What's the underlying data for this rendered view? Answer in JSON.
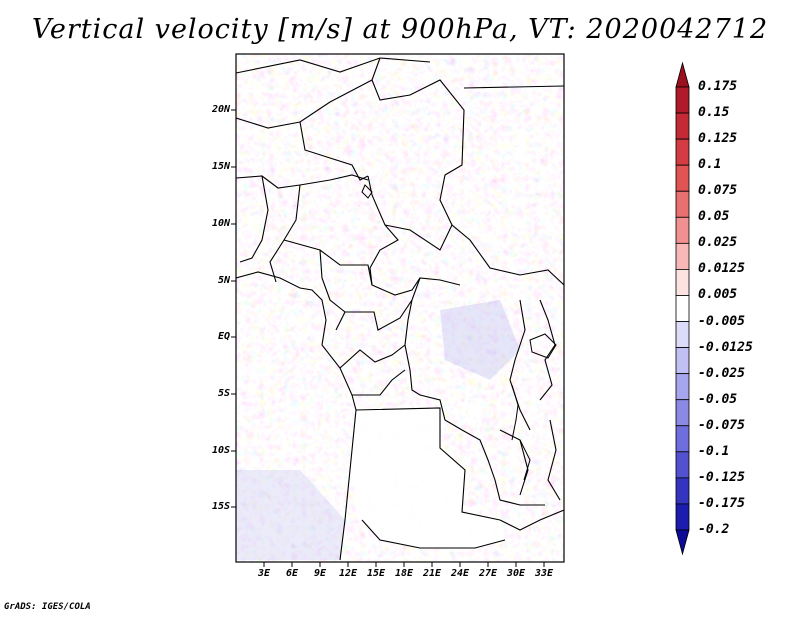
{
  "title": "Vertical velocity [m/s] at 900hPa, VT: 2020042712",
  "footer": "GrADS: IGES/COLA",
  "lat_labels": [
    "20N",
    "15N",
    "10N",
    "5N",
    "EQ",
    "5S",
    "10S",
    "15S"
  ],
  "lon_labels": [
    "3E",
    "6E",
    "9E",
    "12E",
    "15E",
    "18E",
    "21E",
    "24E",
    "27E",
    "30E",
    "33E"
  ],
  "colorbar": {
    "labels": [
      "0.175",
      "0.15",
      "0.125",
      "0.1",
      "0.075",
      "0.05",
      "0.025",
      "0.0125",
      "0.005",
      "-0.005",
      "-0.0125",
      "-0.025",
      "-0.05",
      "-0.075",
      "-0.1",
      "-0.125",
      "-0.175",
      "-0.2"
    ],
    "colors": [
      "#9c0f1e",
      "#b11a2a",
      "#c42a36",
      "#d43c44",
      "#e05454",
      "#e87070",
      "#f09090",
      "#f8b8b8",
      "#fde2e2",
      "#ffffff",
      "#dcdcf8",
      "#c0c0f4",
      "#a6a6ee",
      "#8a8ae4",
      "#6e6edc",
      "#5252d0",
      "#3434c0",
      "#1c1cae",
      "#0c0c98"
    ]
  },
  "chart_data": {
    "type": "heatmap",
    "title": "Vertical velocity [m/s] at 900hPa, VT: 2020042712",
    "variable": "Vertical velocity",
    "units": "m/s",
    "level": "900hPa",
    "valid_time": "2020042712",
    "lon_range": [
      0,
      35
    ],
    "lat_range": [
      -20,
      24
    ],
    "contour_levels": [
      -0.2,
      -0.175,
      -0.125,
      -0.1,
      -0.075,
      -0.05,
      -0.025,
      -0.0125,
      -0.005,
      0.005,
      0.0125,
      0.025,
      0.05,
      0.075,
      0.1,
      0.125,
      0.15,
      0.175
    ]
  }
}
